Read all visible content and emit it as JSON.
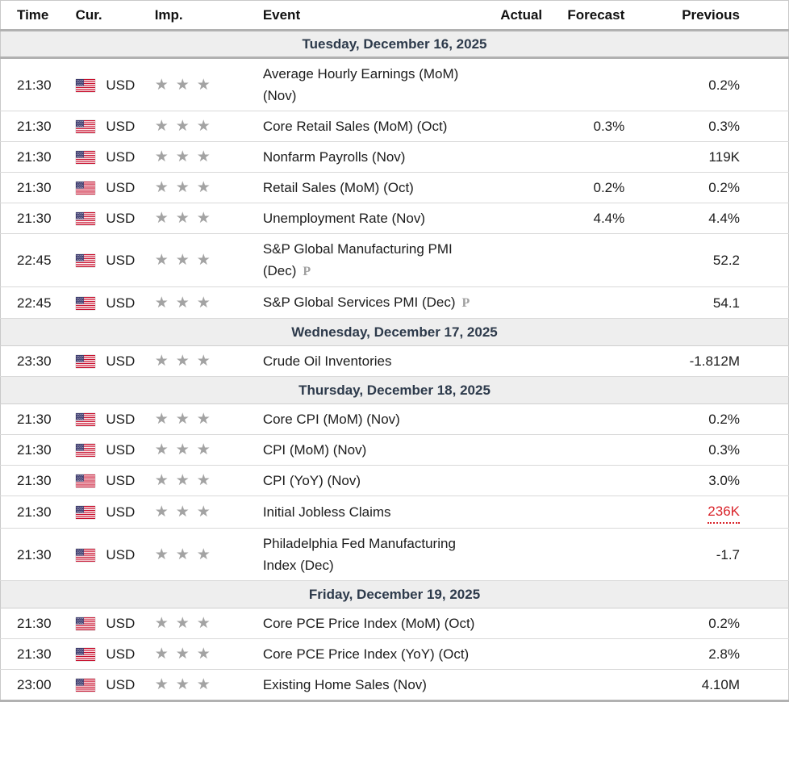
{
  "header": {
    "time": "Time",
    "cur": "Cur.",
    "imp": "Imp.",
    "event": "Event",
    "actual": "Actual",
    "forecast": "Forecast",
    "previous": "Previous"
  },
  "icons": {
    "flag": "us-flag",
    "importance_star": "★",
    "preliminary_marker": "P"
  },
  "colors": {
    "alert_red": "#d9232a",
    "date_row_bg": "#eeeeee",
    "date_text": "#2d3a4b",
    "star_gray": "#a3a3a3",
    "thick_border": "#b1b1b1",
    "flag_red": "#C8102E",
    "flag_blue": "#3C3B6E"
  },
  "calendar": {
    "groups": [
      {
        "date": "Tuesday, December 16, 2025",
        "highlight": true,
        "rows": [
          {
            "time": "21:30",
            "currency": "USD",
            "importance": 3,
            "event": "Average Hourly Earnings (MoM) (Nov)",
            "preliminary": false,
            "actual": "",
            "forecast": "",
            "previous": "0.2%",
            "previous_alert": false
          },
          {
            "time": "21:30",
            "currency": "USD",
            "importance": 3,
            "event": "Core Retail Sales (MoM) (Oct)",
            "preliminary": false,
            "actual": "",
            "forecast": "0.3%",
            "previous": "0.3%",
            "previous_alert": false
          },
          {
            "time": "21:30",
            "currency": "USD",
            "importance": 3,
            "event": "Nonfarm Payrolls (Nov)",
            "preliminary": false,
            "actual": "",
            "forecast": "",
            "previous": "119K",
            "previous_alert": false
          },
          {
            "time": "21:30",
            "currency": "USD",
            "importance": 3,
            "event": "Retail Sales (MoM) (Oct)",
            "preliminary": false,
            "actual": "",
            "forecast": "0.2%",
            "previous": "0.2%",
            "previous_alert": false
          },
          {
            "time": "21:30",
            "currency": "USD",
            "importance": 3,
            "event": "Unemployment Rate (Nov)",
            "preliminary": false,
            "actual": "",
            "forecast": "4.4%",
            "previous": "4.4%",
            "previous_alert": false
          },
          {
            "time": "22:45",
            "currency": "USD",
            "importance": 3,
            "event": "S&P Global Manufacturing PMI (Dec)",
            "preliminary": true,
            "actual": "",
            "forecast": "",
            "previous": "52.2",
            "previous_alert": false
          },
          {
            "time": "22:45",
            "currency": "USD",
            "importance": 3,
            "event": "S&P Global Services PMI (Dec)",
            "preliminary": true,
            "actual": "",
            "forecast": "",
            "previous": "54.1",
            "previous_alert": false
          }
        ]
      },
      {
        "date": "Wednesday, December 17, 2025",
        "highlight": false,
        "rows": [
          {
            "time": "23:30",
            "currency": "USD",
            "importance": 3,
            "event": "Crude Oil Inventories",
            "preliminary": false,
            "actual": "",
            "forecast": "",
            "previous": "-1.812M",
            "previous_alert": false
          }
        ]
      },
      {
        "date": "Thursday, December 18, 2025",
        "highlight": false,
        "rows": [
          {
            "time": "21:30",
            "currency": "USD",
            "importance": 3,
            "event": "Core CPI (MoM) (Nov)",
            "preliminary": false,
            "actual": "",
            "forecast": "",
            "previous": "0.2%",
            "previous_alert": false
          },
          {
            "time": "21:30",
            "currency": "USD",
            "importance": 3,
            "event": "CPI (MoM) (Nov)",
            "preliminary": false,
            "actual": "",
            "forecast": "",
            "previous": "0.3%",
            "previous_alert": false
          },
          {
            "time": "21:30",
            "currency": "USD",
            "importance": 3,
            "event": "CPI (YoY) (Nov)",
            "preliminary": false,
            "actual": "",
            "forecast": "",
            "previous": "3.0%",
            "previous_alert": false
          },
          {
            "time": "21:30",
            "currency": "USD",
            "importance": 3,
            "event": "Initial Jobless Claims",
            "preliminary": false,
            "actual": "",
            "forecast": "",
            "previous": "236K",
            "previous_alert": true
          },
          {
            "time": "21:30",
            "currency": "USD",
            "importance": 3,
            "event": "Philadelphia Fed Manufacturing Index (Dec)",
            "preliminary": false,
            "actual": "",
            "forecast": "",
            "previous": "-1.7",
            "previous_alert": false
          }
        ]
      },
      {
        "date": "Friday, December 19, 2025",
        "highlight": false,
        "rows": [
          {
            "time": "21:30",
            "currency": "USD",
            "importance": 3,
            "event": "Core PCE Price Index (MoM) (Oct)",
            "preliminary": false,
            "actual": "",
            "forecast": "",
            "previous": "0.2%",
            "previous_alert": false
          },
          {
            "time": "21:30",
            "currency": "USD",
            "importance": 3,
            "event": "Core PCE Price Index (YoY) (Oct)",
            "preliminary": false,
            "actual": "",
            "forecast": "",
            "previous": "2.8%",
            "previous_alert": false
          },
          {
            "time": "23:00",
            "currency": "USD",
            "importance": 3,
            "event": "Existing Home Sales (Nov)",
            "preliminary": false,
            "actual": "",
            "forecast": "",
            "previous": "4.10M",
            "previous_alert": false
          }
        ]
      }
    ]
  }
}
